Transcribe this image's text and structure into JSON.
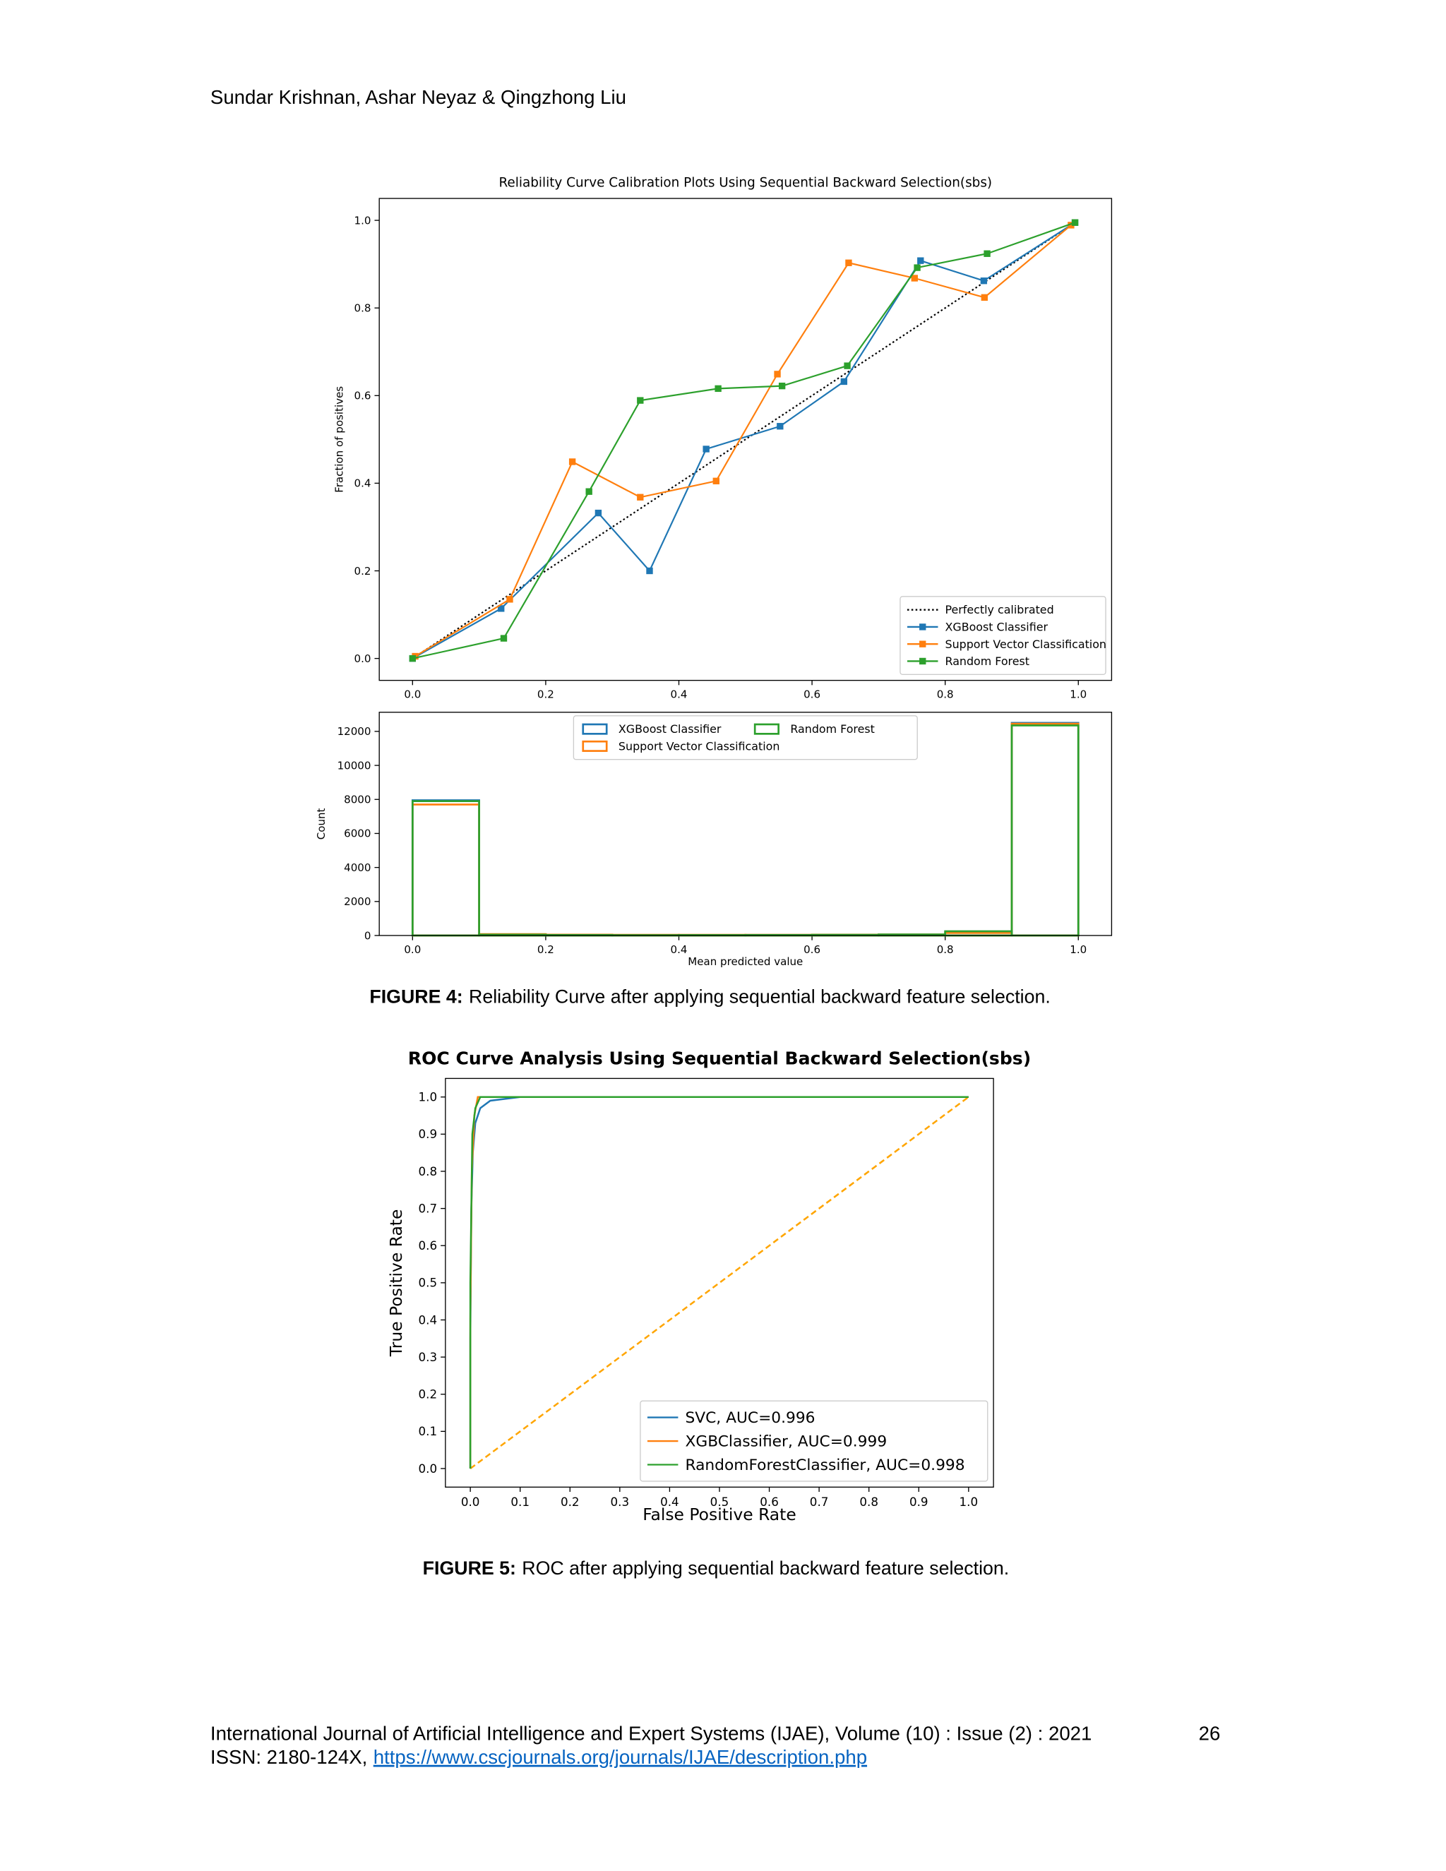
{
  "header": "Sundar Krishnan, Ashar Neyaz & Qingzhong Liu",
  "captions": [
    {
      "label": "FIGURE 4:",
      "text": "Reliability Curve after applying sequential backward feature selection."
    },
    {
      "label": "FIGURE 5:",
      "text": "ROC after applying sequential backward feature selection."
    }
  ],
  "footer": {
    "journal": "International Journal of Artificial Intelligence and Expert Systems (IJAE), Volume (10) : Issue (2) : 2021",
    "page": "26",
    "issn": "ISSN: 2180-124X,",
    "link": "https://www.cscjournals.org/journals/IJAE/description.php"
  },
  "chart_data": [
    {
      "type": "line",
      "title": "Reliability Curve Calibration Plots Using Sequential Backward Selection(sbs)",
      "y_label": "Fraction of positives",
      "xlim": [
        -0.05,
        1.05
      ],
      "ylim": [
        -0.05,
        1.05
      ],
      "xticks": [
        {
          "value": 0,
          "label": "0.0"
        },
        {
          "value": 0.2,
          "label": "0.2"
        },
        {
          "value": 0.4,
          "label": "0.4"
        },
        {
          "value": 0.6,
          "label": "0.6"
        },
        {
          "value": 0.8,
          "label": "0.8"
        },
        {
          "value": 1,
          "label": "1.0"
        }
      ],
      "yticks": [
        {
          "value": 0,
          "label": "0.0"
        },
        {
          "value": 0.2,
          "label": "0.2"
        },
        {
          "value": 0.4,
          "label": "0.4"
        },
        {
          "value": 0.6,
          "label": "0.6"
        },
        {
          "value": 0.8,
          "label": "0.8"
        },
        {
          "value": 1,
          "label": "1.0"
        }
      ],
      "grid": false,
      "legend": "lower right",
      "series": [
        {
          "name": "Perfectly calibrated",
          "color": "#000000",
          "linestyle": "dotted",
          "x": [
            0,
            1
          ],
          "values": [
            0,
            1
          ]
        },
        {
          "name": "XGBoost Classifier",
          "color": "#1f77b4",
          "marker": "square",
          "x": [
            0.0,
            0.133,
            0.279,
            0.356,
            0.441,
            0.552,
            0.648,
            0.763,
            0.858,
            0.995
          ],
          "values": [
            0.0,
            0.114,
            0.332,
            0.2,
            0.478,
            0.53,
            0.632,
            0.908,
            0.862,
            0.995
          ]
        },
        {
          "name": "Support Vector Classification",
          "color": "#ff7f0e",
          "marker": "square",
          "x": [
            0.004,
            0.146,
            0.24,
            0.342,
            0.456,
            0.548,
            0.655,
            0.754,
            0.859,
            0.989
          ],
          "values": [
            0.005,
            0.135,
            0.449,
            0.368,
            0.405,
            0.649,
            0.903,
            0.868,
            0.824,
            0.989
          ]
        },
        {
          "name": "Random Forest",
          "color": "#2ca02c",
          "marker": "square",
          "x": [
            0.0,
            0.137,
            0.265,
            0.342,
            0.459,
            0.555,
            0.653,
            0.758,
            0.863,
            0.995
          ],
          "values": [
            0.0,
            0.046,
            0.381,
            0.589,
            0.616,
            0.622,
            0.668,
            0.892,
            0.924,
            0.995
          ]
        }
      ]
    },
    {
      "type": "histogram",
      "x_label": "Mean predicted value",
      "y_label": "Count",
      "xlim": [
        -0.05,
        1.05
      ],
      "ylim": [
        0,
        13125
      ],
      "xticks": [
        {
          "value": 0,
          "label": "0.0"
        },
        {
          "value": 0.2,
          "label": "0.2"
        },
        {
          "value": 0.4,
          "label": "0.4"
        },
        {
          "value": 0.6,
          "label": "0.6"
        },
        {
          "value": 0.8,
          "label": "0.8"
        },
        {
          "value": 1,
          "label": "1.0"
        }
      ],
      "yticks": [
        0,
        2000,
        4000,
        6000,
        8000,
        10000,
        12000
      ],
      "grid": false,
      "legend": "upper center",
      "legend_columns": 2,
      "bins": [
        0,
        0.1,
        0.2,
        0.3,
        0.4,
        0.5,
        0.6,
        0.7,
        0.8,
        0.9,
        1.0
      ],
      "series": [
        {
          "name": "XGBoost Classifier",
          "color": "#1f77b4",
          "values": [
            7950,
            60,
            30,
            20,
            25,
            30,
            30,
            40,
            200,
            12500
          ]
        },
        {
          "name": "Support Vector Classification",
          "color": "#ff7f0e",
          "values": [
            7700,
            80,
            50,
            40,
            40,
            40,
            50,
            60,
            150,
            12450
          ]
        },
        {
          "name": "Random Forest",
          "color": "#2ca02c",
          "values": [
            7900,
            50,
            30,
            20,
            25,
            30,
            40,
            60,
            250,
            12350
          ]
        }
      ]
    },
    {
      "type": "line",
      "title": "ROC Curve Analysis Using Sequential Backward Selection(sbs)",
      "x_label": "False Positive Rate",
      "y_label": "True Positive Rate",
      "xlim": [
        -0.05,
        1.05
      ],
      "ylim": [
        -0.05,
        1.05
      ],
      "xticks": [
        {
          "value": 0,
          "label": "0.0"
        },
        0.1,
        0.2,
        0.3,
        0.4,
        0.5,
        0.6,
        0.7,
        0.8,
        0.9,
        {
          "value": 1,
          "label": "1.0"
        }
      ],
      "yticks": [
        {
          "value": 0,
          "label": "0.0"
        },
        0.1,
        0.2,
        0.3,
        0.4,
        0.5,
        0.6,
        0.7,
        0.8,
        0.9,
        {
          "value": 1,
          "label": "1.0"
        }
      ],
      "grid": false,
      "legend": "lower right",
      "series": [
        {
          "color": "#ffa500",
          "linestyle": "dashed",
          "x": [
            0,
            1
          ],
          "values": [
            0,
            1
          ]
        },
        {
          "name": "SVC, AUC=0.996",
          "color": "#1f77b4",
          "x": [
            0,
            0,
            0.002,
            0.005,
            0.01,
            0.02,
            0.04,
            0.1,
            1
          ],
          "values": [
            0,
            0.35,
            0.7,
            0.85,
            0.93,
            0.97,
            0.99,
            1,
            1
          ]
        },
        {
          "name": "XGBClassifier, AUC=0.999",
          "color": "#ff7f0e",
          "x": [
            0,
            0,
            0.003,
            0.008,
            0.015,
            1
          ],
          "values": [
            0,
            0.4,
            0.8,
            0.95,
            1,
            1
          ]
        },
        {
          "name": "RandomForestClassifier, AUC=0.998",
          "color": "#2ca02c",
          "x": [
            0,
            0,
            0.004,
            0.01,
            0.02,
            1
          ],
          "values": [
            0,
            0.5,
            0.9,
            0.97,
            1,
            1
          ]
        }
      ]
    }
  ]
}
